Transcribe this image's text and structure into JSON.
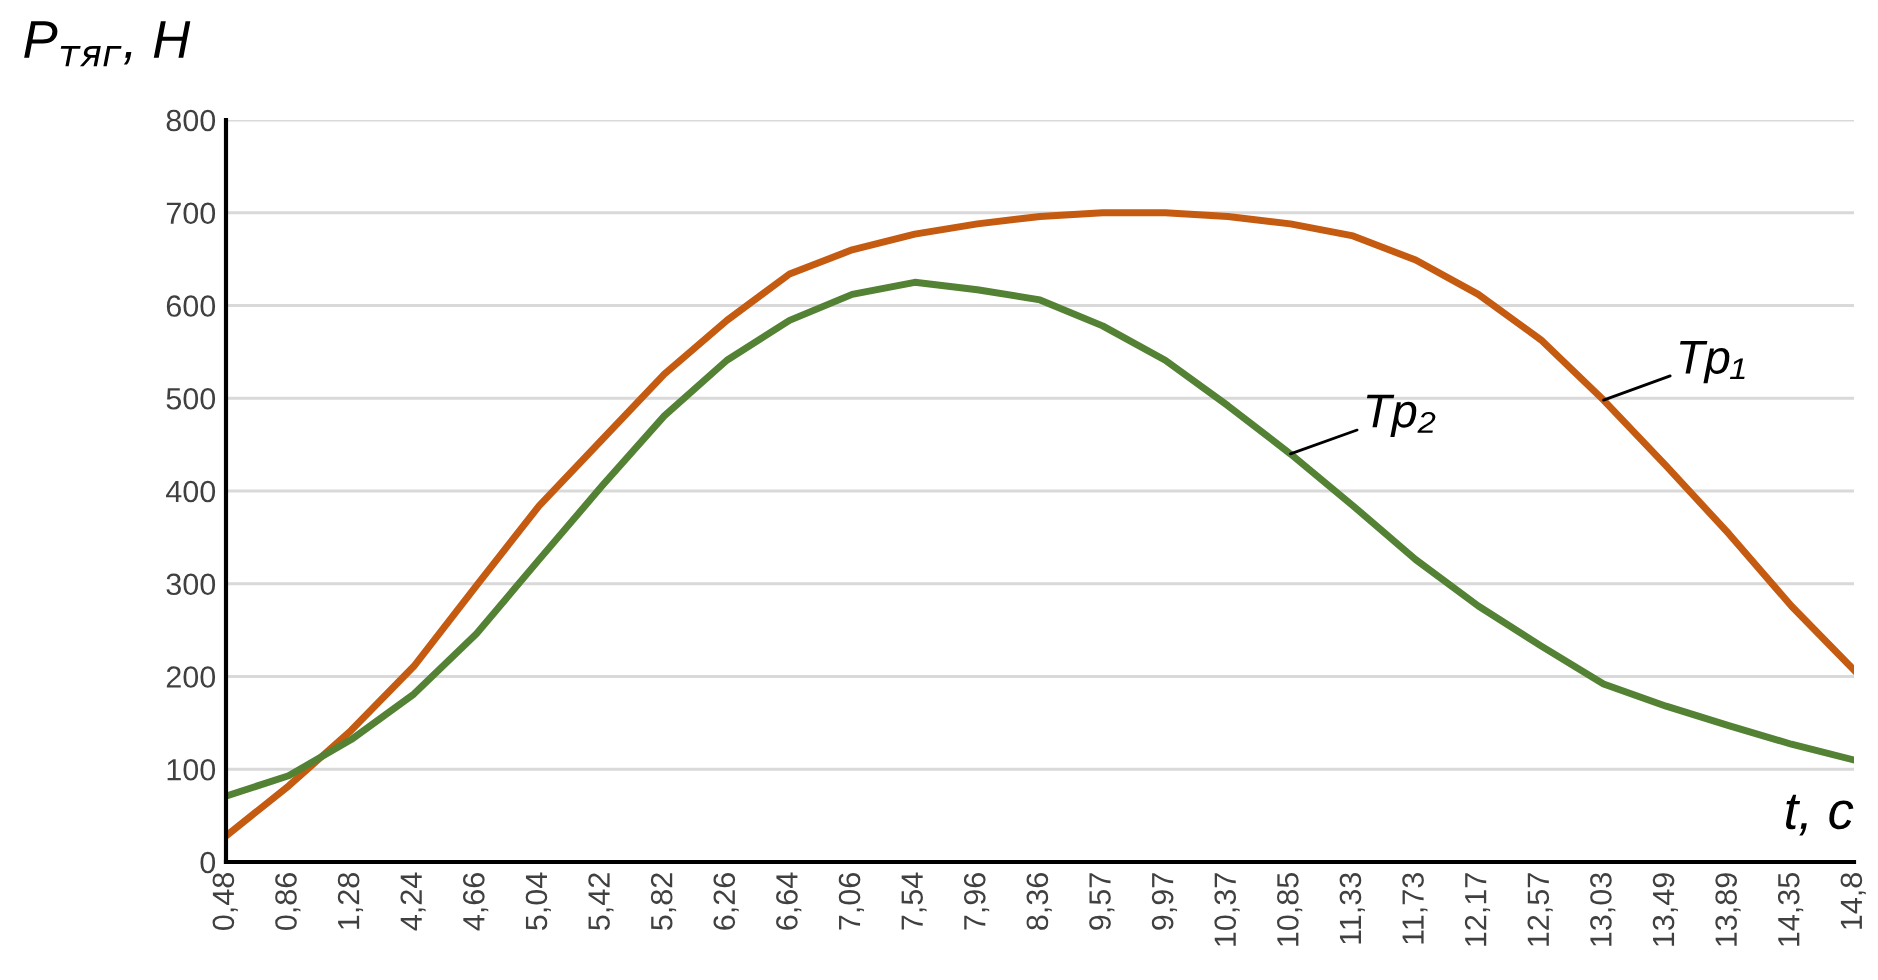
{
  "chart_data": {
    "type": "line",
    "xlabel": "t, с",
    "ylabel": "P$_{тяг}$, Н",
    "categories": [
      "0,48",
      "0,86",
      "1,28",
      "4,24",
      "4,66",
      "5,04",
      "5,42",
      "5,82",
      "6,26",
      "6,64",
      "7,06",
      "7,54",
      "7,96",
      "8,36",
      "9,57",
      "9,97",
      "10,37",
      "10,85",
      "11,33",
      "11,73",
      "12,17",
      "12,57",
      "13,03",
      "13,49",
      "13,89",
      "14,35",
      "14,8"
    ],
    "series": [
      {
        "name": "Tp₁",
        "color": "#c55a11",
        "values": [
          28,
          82,
          142,
          211,
          298,
          384,
          455,
          526,
          584,
          634,
          660,
          677,
          688,
          696,
          700,
          700,
          696,
          688,
          675,
          649,
          612,
          563,
          498,
          427,
          354,
          276,
          207
        ]
      },
      {
        "name": "Tp₂",
        "color": "#548235",
        "values": [
          71,
          93,
          132,
          181,
          246,
          326,
          405,
          481,
          541,
          584,
          612,
          625,
          617,
          606,
          578,
          541,
          492,
          440,
          384,
          326,
          276,
          233,
          192,
          168,
          147,
          127,
          110
        ]
      }
    ],
    "ylim": [
      0,
      800
    ],
    "yticks": [
      0,
      100,
      200,
      300,
      400,
      500,
      600,
      700,
      800
    ],
    "grid": "y",
    "legend": false,
    "marker": "none",
    "line_style": "solid"
  }
}
